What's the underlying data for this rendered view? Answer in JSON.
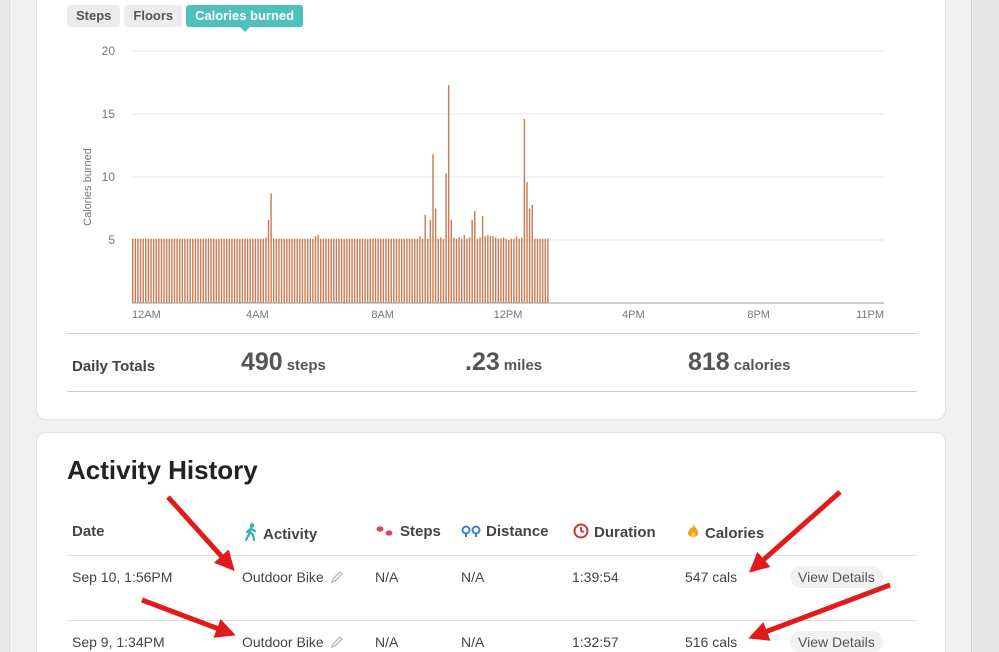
{
  "tabs": [
    "Steps",
    "Floors",
    "Calories burned"
  ],
  "active_tab": "Calories burned",
  "chart_data": {
    "type": "bar",
    "ylabel": "Calories burned",
    "yticks": [
      "5",
      "10",
      "15",
      "20"
    ],
    "ylim": [
      0,
      20
    ],
    "xticks": [
      {
        "label": "12AM",
        "hour": 0
      },
      {
        "label": "4AM",
        "hour": 4
      },
      {
        "label": "8AM",
        "hour": 8
      },
      {
        "label": "12PM",
        "hour": 12
      },
      {
        "label": "4PM",
        "hour": 16
      },
      {
        "label": "8PM",
        "hour": 20
      },
      {
        "label": "11PM",
        "hour": 23
      }
    ],
    "xlim_hours": [
      0,
      24
    ],
    "interval_minutes": 5,
    "bar_color": "#c97d5a",
    "values": [
      5.1,
      5.1,
      5.1,
      5.1,
      5.1,
      5.1,
      5.1,
      5.1,
      5.1,
      5.1,
      5.1,
      5.1,
      5.1,
      5.1,
      5.1,
      5.1,
      5.1,
      5.1,
      5.1,
      5.1,
      5.1,
      5.1,
      5.1,
      5.1,
      5.1,
      5.1,
      5.1,
      5.1,
      5.1,
      5.1,
      5.1,
      5.1,
      5.1,
      5.1,
      5.1,
      5.1,
      5.1,
      5.1,
      5.1,
      5.1,
      5.1,
      5.1,
      5.1,
      5.1,
      5.1,
      5.1,
      5.1,
      5.1,
      5.1,
      5.1,
      5.1,
      5.2,
      6.6,
      8.7,
      5.1,
      5.1,
      5.1,
      5.1,
      5.1,
      5.1,
      5.1,
      5.1,
      5.1,
      5.1,
      5.1,
      5.1,
      5.1,
      5.1,
      5.1,
      5.1,
      5.3,
      5.4,
      5.1,
      5.1,
      5.1,
      5.1,
      5.1,
      5.1,
      5.1,
      5.1,
      5.1,
      5.1,
      5.1,
      5.1,
      5.1,
      5.1,
      5.1,
      5.1,
      5.1,
      5.1,
      5.1,
      5.1,
      5.1,
      5.1,
      5.1,
      5.1,
      5.1,
      5.1,
      5.1,
      5.1,
      5.1,
      5.1,
      5.1,
      5.1,
      5.1,
      5.1,
      5.1,
      5.1,
      5.1,
      5.1,
      5.3,
      5.1,
      7.0,
      5.1,
      6.6,
      11.8,
      7.5,
      5.1,
      5.2,
      5.1,
      10.3,
      17.3,
      6.6,
      5.2,
      5.1,
      5.2,
      5.1,
      5.4,
      5.1,
      5.2,
      6.6,
      7.3,
      5.1,
      5.2,
      6.9,
      5.3,
      5.4,
      5.3,
      5.3,
      5.2,
      5.1,
      5.1,
      5.2,
      5.1,
      5.0,
      5.1,
      5.1,
      5.3,
      5.1,
      5.2,
      14.6,
      9.6,
      7.5,
      7.8,
      5.1,
      5.1,
      5.1,
      5.1,
      5.1,
      5.1
    ]
  },
  "totals": {
    "label": "Daily Totals",
    "steps": {
      "value": "490",
      "unit": "steps"
    },
    "miles": {
      "value": ".23",
      "unit": "miles"
    },
    "calories": {
      "value": "818",
      "unit": "calories"
    }
  },
  "history": {
    "title": "Activity History",
    "headers": {
      "date": "Date",
      "activity": "Activity",
      "steps": "Steps",
      "distance": "Distance",
      "duration": "Duration",
      "calories": "Calories"
    },
    "rows": [
      {
        "date": "Sep 10, 1:56PM",
        "activity": "Outdoor Bike",
        "steps": "N/A",
        "distance": "N/A",
        "duration": "1:39:54",
        "calories": "547 cals",
        "action": "View Details"
      },
      {
        "date": "Sep 9, 1:34PM",
        "activity": "Outdoor Bike",
        "steps": "N/A",
        "distance": "N/A",
        "duration": "1:32:57",
        "calories": "516 cals",
        "action": "View Details"
      }
    ]
  },
  "colors": {
    "accent": "#4fc1bd",
    "bar": "#c97d5a",
    "annotation_arrow": "#e01b1b",
    "steps_icon": "#d9455a",
    "distance_icon": "#3a7dd3",
    "duration_icon": "#cc3333",
    "calories_icon": "#f2a020",
    "activity_icon": "#2bb5a6"
  }
}
